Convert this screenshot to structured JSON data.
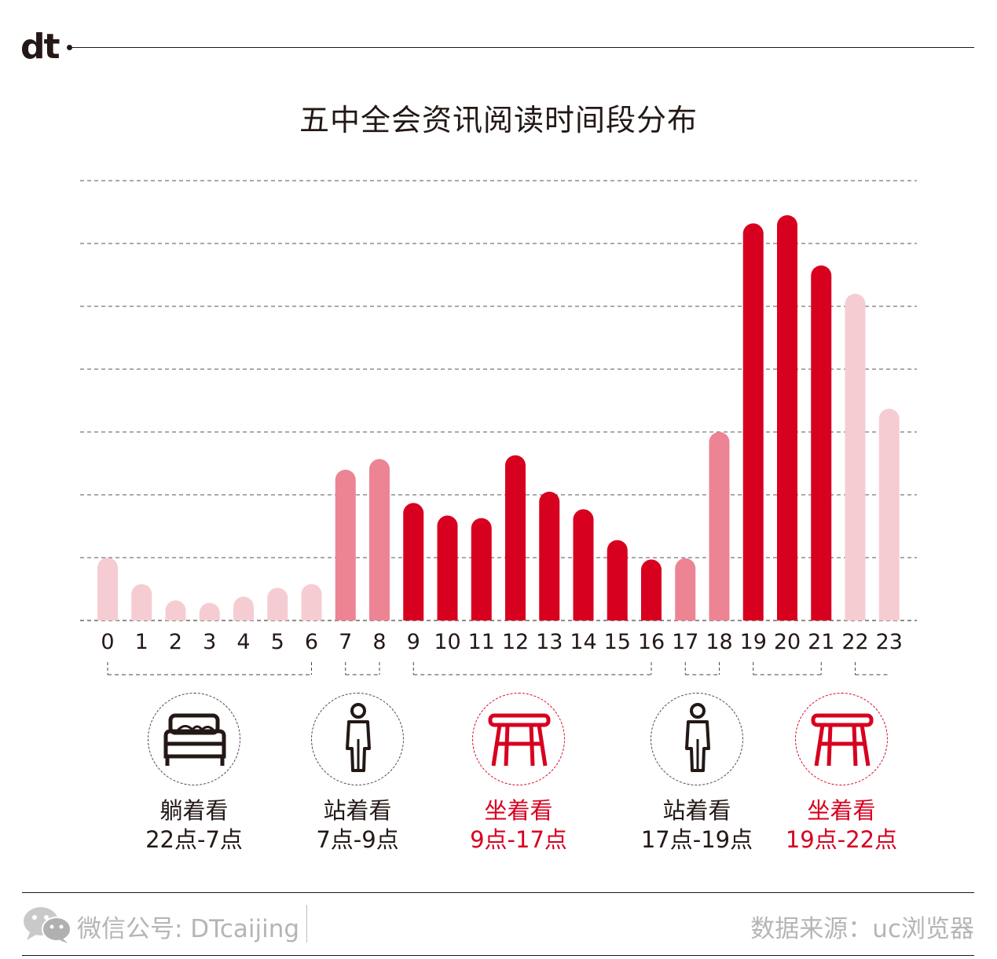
{
  "brand": {
    "logo_text": "dt"
  },
  "chart_data": {
    "type": "bar",
    "title": "五中全会资讯阅读时间段分布",
    "xlabel": "",
    "ylabel": "",
    "grid": true,
    "y_axis_labels_shown": false,
    "ylim": [
      0,
      7
    ],
    "categories": [
      "0",
      "1",
      "2",
      "3",
      "4",
      "5",
      "6",
      "7",
      "8",
      "9",
      "10",
      "11",
      "12",
      "13",
      "14",
      "15",
      "16",
      "17",
      "18",
      "19",
      "20",
      "21",
      "22",
      "23"
    ],
    "values": [
      1.0,
      0.58,
      0.32,
      0.28,
      0.38,
      0.52,
      0.58,
      2.4,
      2.57,
      1.87,
      1.67,
      1.63,
      2.63,
      2.05,
      1.77,
      1.28,
      0.97,
      0.99,
      3.0,
      6.32,
      6.45,
      5.65,
      5.2,
      3.37
    ],
    "bar_groups": [
      0,
      0,
      0,
      0,
      0,
      0,
      0,
      1,
      1,
      2,
      2,
      2,
      2,
      2,
      2,
      2,
      2,
      1,
      1,
      2,
      2,
      2,
      0,
      0
    ],
    "colors": [
      "#f6ccd3",
      "#ec8494",
      "#d7001f"
    ]
  },
  "segments": [
    {
      "icon": "bed-icon",
      "label": "躺着看",
      "range": "22点-7点",
      "color": "dark"
    },
    {
      "icon": "standing-person-icon",
      "label": "站着看",
      "range": "7点-9点",
      "color": "dark"
    },
    {
      "icon": "stool-icon",
      "label": "坐着看",
      "range": "9点-17点",
      "color": "red"
    },
    {
      "icon": "standing-person-icon",
      "label": "站着看",
      "range": "17点-19点",
      "color": "dark"
    },
    {
      "icon": "stool-icon",
      "label": "坐着看",
      "range": "19点-22点",
      "color": "red"
    }
  ],
  "footer": {
    "wechat_label": "微信公号: DTcaijing",
    "source": "数据来源：uc浏览器"
  },
  "colors": {
    "dark": "#231815",
    "red": "#d7001f",
    "grey": "#b5b5b5"
  }
}
